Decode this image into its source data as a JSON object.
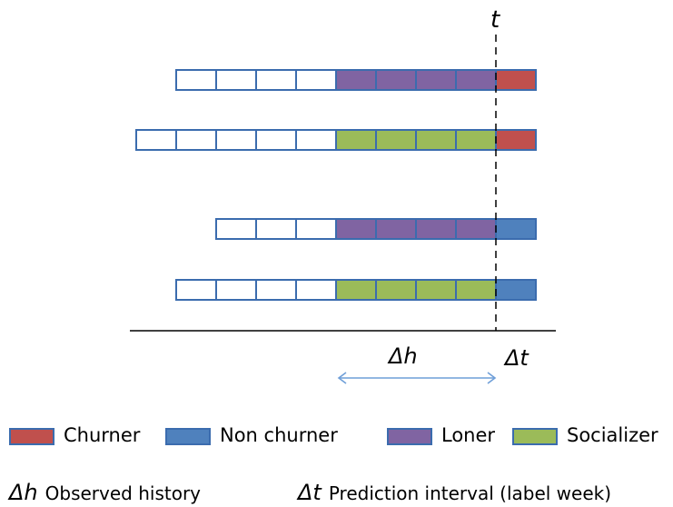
{
  "time_label": "t",
  "history_symbol": "Δh",
  "interval_symbol": "Δt",
  "legend": [
    {
      "key": "churner",
      "label": "Churner",
      "color": "#c0504d"
    },
    {
      "key": "non_churner",
      "label": "Non churner",
      "color": "#4f81bd"
    },
    {
      "key": "loner",
      "label": "Loner",
      "color": "#8064a2"
    },
    {
      "key": "socializer",
      "label": "Socializer",
      "color": "#9bbb59"
    }
  ],
  "definitions": {
    "history": {
      "symbol": "Δh",
      "label": "Observed history"
    },
    "interval": {
      "symbol": "Δt",
      "label": "Prediction interval (label week)"
    }
  },
  "rows": [
    {
      "empty_weeks": 4,
      "type": "loner",
      "outcome": "churner"
    },
    {
      "empty_weeks": 5,
      "type": "socializer",
      "outcome": "churner"
    },
    {
      "empty_weeks": 3,
      "type": "loner",
      "outcome": "non_churner"
    },
    {
      "empty_weeks": 4,
      "type": "socializer",
      "outcome": "non_churner"
    }
  ],
  "history_weeks": 4,
  "colors": {
    "border": "#3b6cae",
    "arrow": "#6f9fd8",
    "empty": "#ffffff"
  }
}
